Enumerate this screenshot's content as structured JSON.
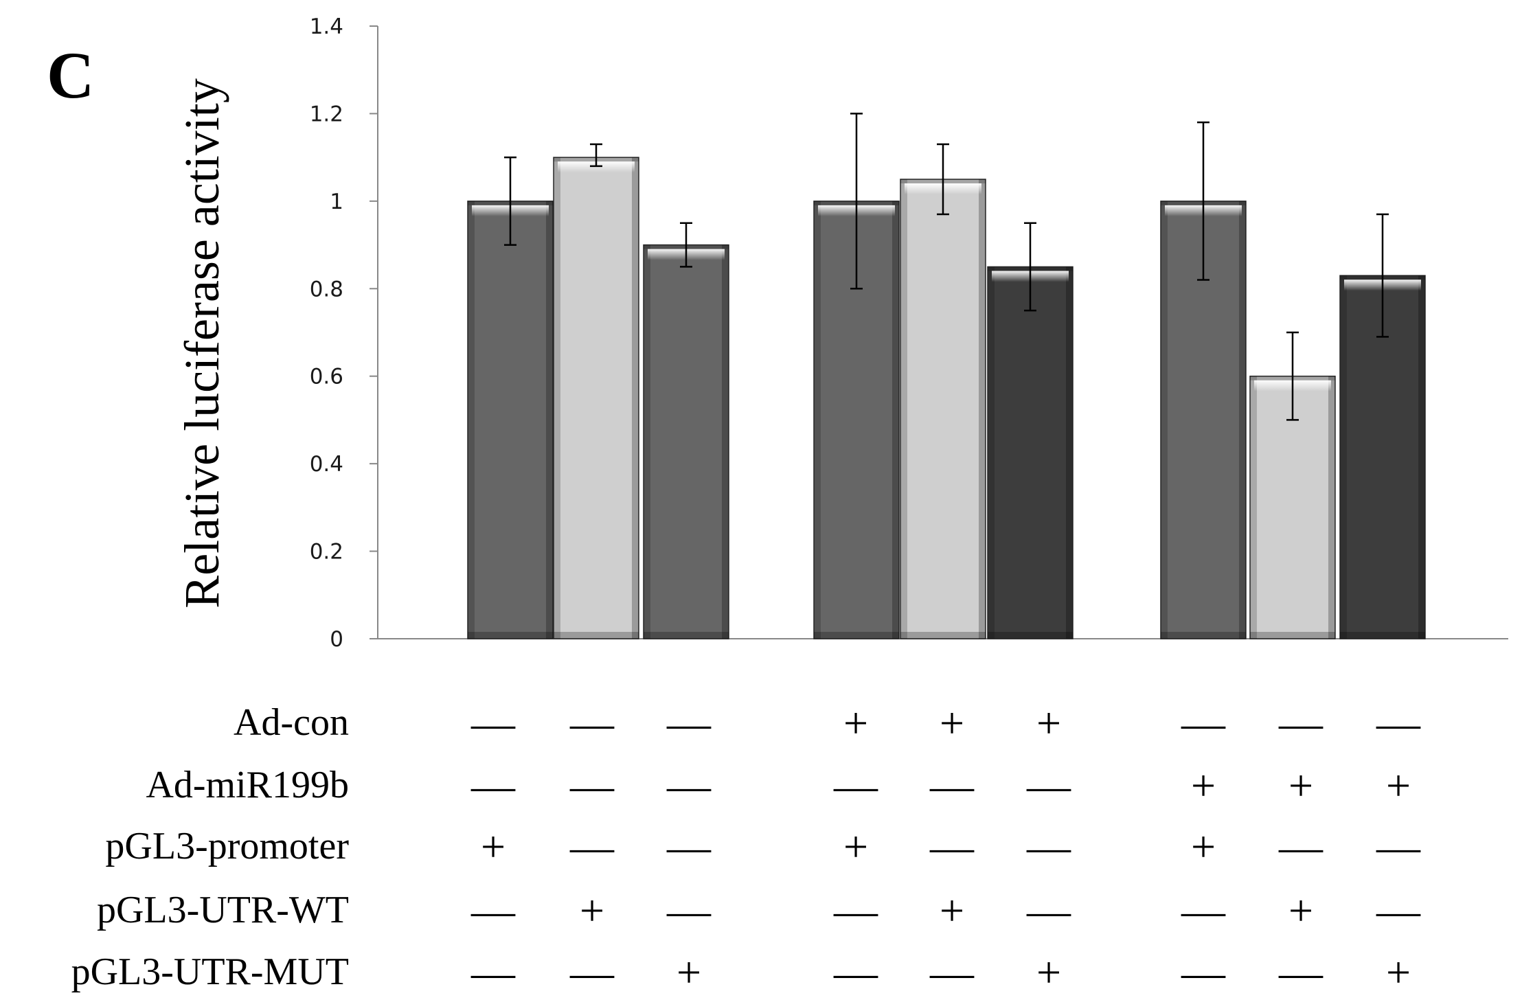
{
  "panel_label": "C",
  "chart_data": {
    "type": "bar",
    "ylabel": "Relative luciferase activity",
    "xlabel": "",
    "ylim": [
      0,
      1.4
    ],
    "yticks": [
      "0",
      "0.2",
      "0.4",
      "0.6",
      "0.8",
      "1",
      "1.2",
      "1.4"
    ],
    "grid": false,
    "legend": "none",
    "bars": [
      {
        "value": 1.0,
        "err_low": 0.9,
        "err_high": 1.1,
        "color": "#666666"
      },
      {
        "value": 1.1,
        "err_low": 1.08,
        "err_high": 1.13,
        "color": "#cfcfcf"
      },
      {
        "value": 0.9,
        "err_low": 0.85,
        "err_high": 0.95,
        "color": "#666666"
      },
      {
        "value": 1.0,
        "err_low": 0.8,
        "err_high": 1.2,
        "color": "#666666"
      },
      {
        "value": 1.05,
        "err_low": 0.97,
        "err_high": 1.13,
        "color": "#cfcfcf"
      },
      {
        "value": 0.85,
        "err_low": 0.75,
        "err_high": 0.95,
        "color": "#3d3d3d"
      },
      {
        "value": 1.0,
        "err_low": 0.82,
        "err_high": 1.18,
        "color": "#666666"
      },
      {
        "value": 0.6,
        "err_low": 0.5,
        "err_high": 0.7,
        "color": "#cfcfcf"
      },
      {
        "value": 0.83,
        "err_low": 0.69,
        "err_high": 0.97,
        "color": "#3d3d3d"
      }
    ],
    "conditions": [
      {
        "label": "Ad-con",
        "signs": [
          "—",
          "—",
          "—",
          "+",
          "+",
          "+",
          "—",
          "—",
          "—"
        ]
      },
      {
        "label": "Ad-miR199b",
        "signs": [
          "—",
          "—",
          "—",
          "—",
          "—",
          "—",
          "+",
          "+",
          "+"
        ]
      },
      {
        "label": "pGL3-promoter",
        "signs": [
          "+",
          "—",
          "—",
          "+",
          "—",
          "—",
          "+",
          "—",
          "—"
        ]
      },
      {
        "label": "pGL3-UTR-WT",
        "signs": [
          "—",
          "+",
          "—",
          "—",
          "+",
          "—",
          "—",
          "+",
          "—"
        ]
      },
      {
        "label": "pGL3-UTR-MUT",
        "signs": [
          "—",
          "—",
          "+",
          "—",
          "—",
          "+",
          "—",
          "—",
          "+"
        ]
      }
    ]
  }
}
